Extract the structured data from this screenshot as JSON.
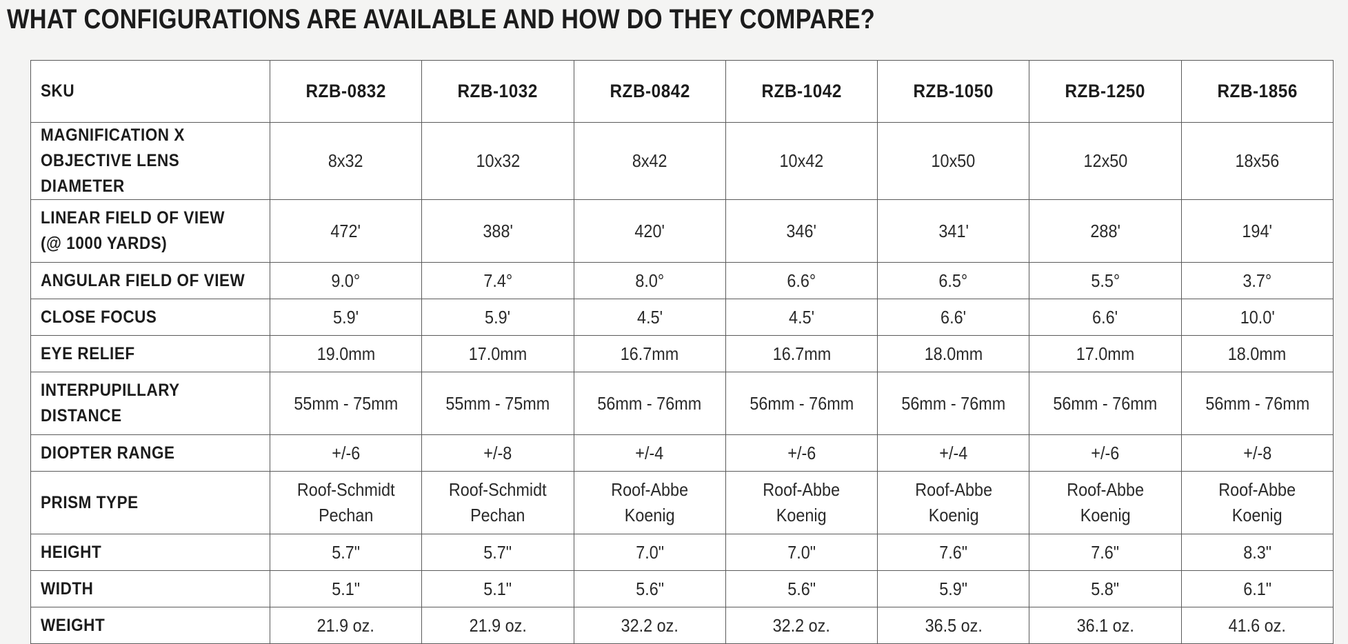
{
  "title": "WHAT CONFIGURATIONS ARE AVAILABLE AND HOW DO THEY COMPARE?",
  "table": {
    "header_label": "SKU",
    "skus": [
      "RZB-0832",
      "RZB-1032",
      "RZB-0842",
      "RZB-1042",
      "RZB-1050",
      "RZB-1250",
      "RZB-1856"
    ],
    "rows": [
      {
        "label": "MAGNIFICATION X\nOBJECTIVE LENS DIAMETER",
        "values": [
          "8x32",
          "10x32",
          "8x42",
          "10x42",
          "10x50",
          "12x50",
          "18x56"
        ]
      },
      {
        "label": "LINEAR FIELD OF VIEW\n(@ 1000 YARDS)",
        "values": [
          "472'",
          "388'",
          "420'",
          "346'",
          "341'",
          "288'",
          "194'"
        ]
      },
      {
        "label": "ANGULAR FIELD OF VIEW",
        "values": [
          "9.0°",
          "7.4°",
          "8.0°",
          "6.6°",
          "6.5°",
          "5.5°",
          "3.7°"
        ]
      },
      {
        "label": "CLOSE FOCUS",
        "values": [
          "5.9'",
          "5.9'",
          "4.5'",
          "4.5'",
          "6.6'",
          "6.6'",
          "10.0'"
        ]
      },
      {
        "label": "EYE RELIEF",
        "values": [
          "19.0mm",
          "17.0mm",
          "16.7mm",
          "16.7mm",
          "18.0mm",
          "17.0mm",
          "18.0mm"
        ]
      },
      {
        "label": "INTERPUPILLARY\nDISTANCE",
        "values": [
          "55mm - 75mm",
          "55mm - 75mm",
          "56mm - 76mm",
          "56mm - 76mm",
          "56mm - 76mm",
          "56mm - 76mm",
          "56mm - 76mm"
        ]
      },
      {
        "label": "DIOPTER RANGE",
        "values": [
          "+/-6",
          "+/-8",
          "+/-4",
          "+/-6",
          "+/-4",
          "+/-6",
          "+/-8"
        ]
      },
      {
        "label": "PRISM TYPE",
        "values": [
          "Roof-Schmidt\nPechan",
          "Roof-Schmidt\nPechan",
          "Roof-Abbe\nKoenig",
          "Roof-Abbe\nKoenig",
          "Roof-Abbe\nKoenig",
          "Roof-Abbe\nKoenig",
          "Roof-Abbe\nKoenig"
        ]
      },
      {
        "label": "HEIGHT",
        "values": [
          "5.7\"",
          "5.7\"",
          "7.0\"",
          "7.0\"",
          "7.6\"",
          "7.6\"",
          "8.3\""
        ]
      },
      {
        "label": "WIDTH",
        "values": [
          "5.1\"",
          "5.1\"",
          "5.6\"",
          "5.6\"",
          "5.9\"",
          "5.8\"",
          "6.1\""
        ]
      },
      {
        "label": "WEIGHT",
        "values": [
          "21.9 oz.",
          "21.9 oz.",
          "32.2 oz.",
          "32.2 oz.",
          "36.5 oz.",
          "36.1 oz.",
          "41.6 oz."
        ]
      }
    ]
  }
}
